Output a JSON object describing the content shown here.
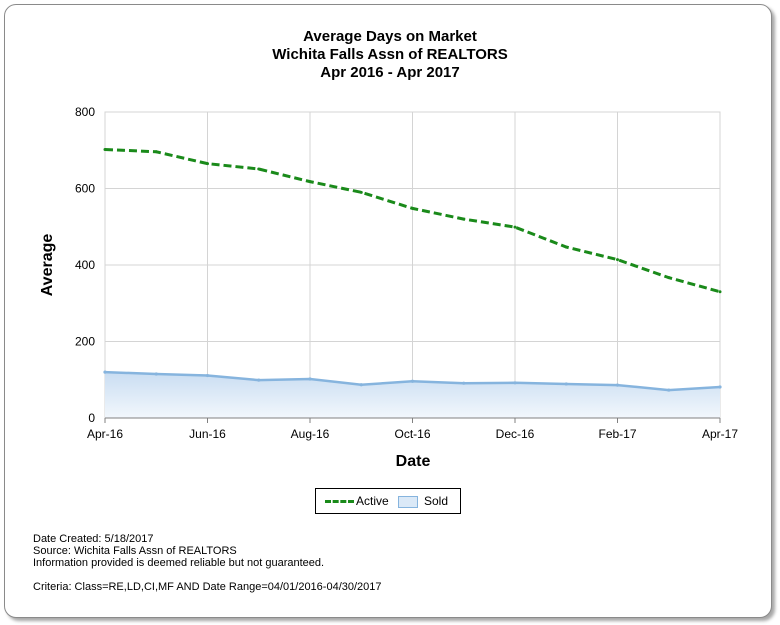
{
  "chart_data": {
    "type": "line",
    "title": "Average Days on Market",
    "subtitle_lines": [
      "Wichita Falls Assn of REALTORS",
      "Apr 2016 - Apr 2017"
    ],
    "xlabel": "Date",
    "ylabel": "Average",
    "x": [
      "Apr-16",
      "May-16",
      "Jun-16",
      "Jul-16",
      "Aug-16",
      "Sep-16",
      "Oct-16",
      "Nov-16",
      "Dec-16",
      "Jan-17",
      "Feb-17",
      "Mar-17",
      "Apr-17"
    ],
    "x_tick_labels": [
      "Apr-16",
      "Jun-16",
      "Aug-16",
      "Oct-16",
      "Dec-16",
      "Feb-17",
      "Apr-17"
    ],
    "ylim": [
      0,
      800
    ],
    "y_ticks": [
      0,
      200,
      400,
      600,
      800
    ],
    "grid": true,
    "legend_position": "bottom-center",
    "series": [
      {
        "name": "Active",
        "style": "dashed-line",
        "color": "#1a8a1a",
        "values": [
          702,
          696,
          665,
          651,
          618,
          590,
          548,
          520,
          499,
          447,
          414,
          367,
          330
        ]
      },
      {
        "name": "Sold",
        "style": "area",
        "color": "#86b4de",
        "fill": "#dbe9f7",
        "values": [
          120,
          115,
          111,
          99,
          102,
          87,
          96,
          91,
          92,
          89,
          86,
          73,
          81
        ]
      }
    ]
  },
  "footer": {
    "date_created": "Date Created: 5/18/2017",
    "source": "Source: Wichita Falls Assn of REALTORS",
    "disclaimer": "Information provided is deemed reliable but not guaranteed.",
    "criteria": "Criteria: Class=RE,LD,CI,MF AND Date Range=04/01/2016-04/30/2017"
  }
}
